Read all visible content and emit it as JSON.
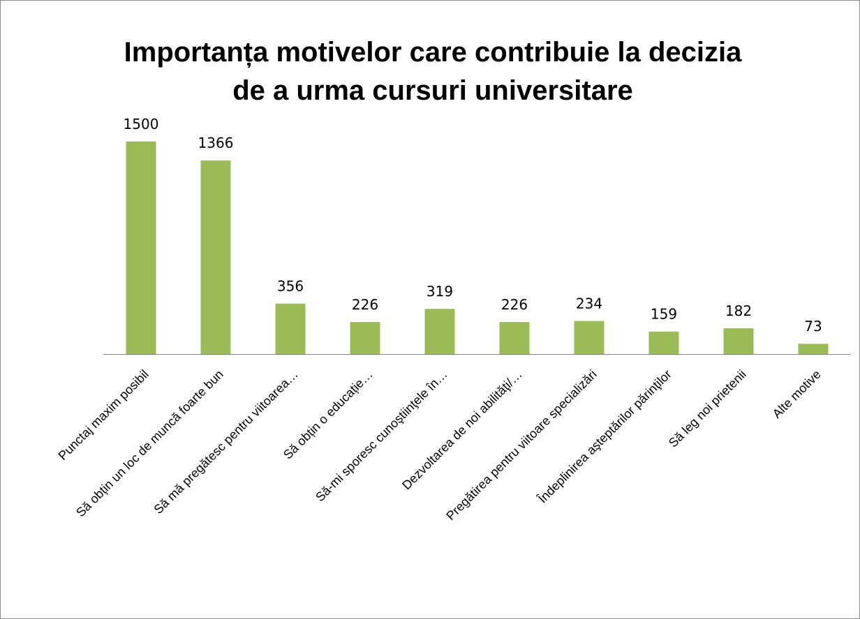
{
  "chart_data": {
    "type": "bar",
    "title": [
      "Importanța motivelor care contribuie la decizia",
      "de a urma cursuri universitare"
    ],
    "categories": [
      "Punctaj maxim posibil",
      "Să obțin un loc de muncă foarte bun",
      "Să mă pregătesc pentru viitoarea…",
      "Să obțin o educație…",
      "Să-mi sporesc cunoştiinţele în…",
      "Dezvoltarea de noi abilităţi/…",
      "Pregătirea pentru viitoare specializări",
      "Îndeplinirea aşteptărilor părinţilor",
      "Să leg noi prietenii",
      "Alte motive"
    ],
    "values": [
      1500,
      1366,
      356,
      226,
      319,
      226,
      234,
      159,
      182,
      73
    ],
    "color": "#9bbb59"
  }
}
